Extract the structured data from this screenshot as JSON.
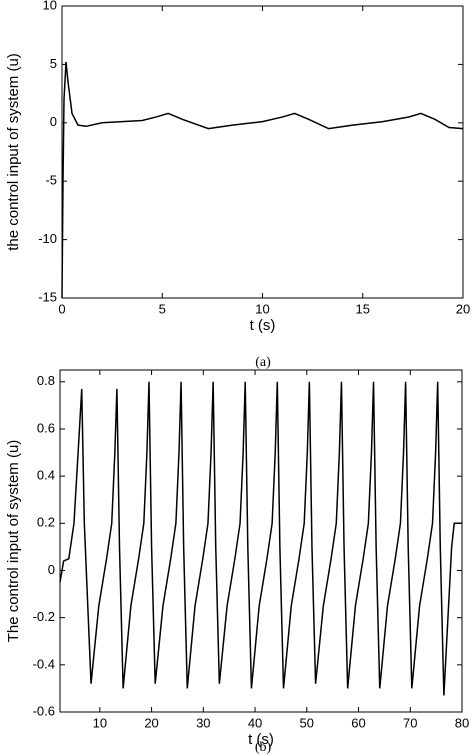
{
  "chart_data": [
    {
      "type": "line",
      "caption": "(a)",
      "xlabel": "t (s)",
      "ylabel": "the control input of system (u)",
      "xlim": [
        0,
        20
      ],
      "ylim": [
        -15,
        10
      ],
      "xticks": [
        0,
        5,
        10,
        15,
        20
      ],
      "yticks": [
        -15,
        -10,
        -5,
        0,
        5,
        10
      ],
      "series": [
        {
          "color": "#000000",
          "x": [
            0,
            0.05,
            0.1,
            0.2,
            0.3,
            0.5,
            0.8,
            1.2,
            2,
            3,
            4,
            4.7,
            5.3,
            6,
            7.3,
            8.5,
            10,
            11,
            11.6,
            12.3,
            13.3,
            14.5,
            16,
            17.3,
            17.9,
            18.6,
            19.3,
            20
          ],
          "values": [
            -15,
            -5,
            2,
            5.2,
            3.5,
            0.8,
            -0.2,
            -0.3,
            0,
            0.1,
            0.2,
            0.5,
            0.8,
            0.3,
            -0.5,
            -0.2,
            0.1,
            0.5,
            0.8,
            0.3,
            -0.5,
            -0.2,
            0.1,
            0.5,
            0.8,
            0.3,
            -0.4,
            -0.5
          ]
        }
      ]
    },
    {
      "type": "line",
      "caption": "(b)",
      "xlabel": "t (s)",
      "ylabel": "The control input of system (u)",
      "xlim": [
        2.3,
        80
      ],
      "ylim": [
        -0.6,
        0.85
      ],
      "xticks": [
        10,
        20,
        30,
        40,
        50,
        60,
        70,
        80
      ],
      "yticks": [
        -0.6,
        -0.4,
        -0.2,
        0,
        0.2,
        0.4,
        0.6,
        0.8
      ],
      "series": [
        {
          "color": "#000000",
          "x": [
            2.3,
            3,
            4,
            5,
            5.8,
            6.5,
            7,
            8.3,
            9.8,
            11.3,
            12.3,
            12.9,
            13.3,
            13.8,
            14.5,
            16,
            17.5,
            18.5,
            19.1,
            19.5,
            20,
            20.7,
            22.2,
            23.7,
            24.7,
            25.3,
            25.7,
            26.2,
            26.9,
            28.4,
            29.9,
            30.9,
            31.5,
            31.9,
            32.4,
            33.1,
            34.6,
            36.1,
            37.1,
            37.7,
            38.1,
            38.6,
            39.3,
            40.8,
            42.3,
            43.3,
            43.9,
            44.3,
            44.8,
            45.5,
            47,
            48.5,
            49.5,
            50.1,
            50.5,
            51,
            51.7,
            53.2,
            54.7,
            55.7,
            56.3,
            56.7,
            57.2,
            57.9,
            59.4,
            60.9,
            61.9,
            62.5,
            62.9,
            63.4,
            64.1,
            65.6,
            67.1,
            68.1,
            68.7,
            69.1,
            69.6,
            70.3,
            71.8,
            73.3,
            74.3,
            74.9,
            75.3,
            75.8,
            76.5,
            78,
            78.5,
            80
          ],
          "values": [
            -0.05,
            0.04,
            0.05,
            0.2,
            0.5,
            0.77,
            0.2,
            -0.48,
            -0.15,
            0.05,
            0.2,
            0.5,
            0.77,
            0.1,
            -0.5,
            -0.15,
            0.05,
            0.2,
            0.5,
            0.8,
            0.1,
            -0.48,
            -0.15,
            0.05,
            0.2,
            0.5,
            0.8,
            0.1,
            -0.5,
            -0.15,
            0.05,
            0.2,
            0.5,
            0.8,
            0.1,
            -0.48,
            -0.15,
            0.05,
            0.2,
            0.5,
            0.8,
            0.1,
            -0.5,
            -0.15,
            0.05,
            0.2,
            0.5,
            0.8,
            0.1,
            -0.5,
            -0.15,
            0.05,
            0.2,
            0.5,
            0.8,
            0.1,
            -0.48,
            -0.15,
            0.05,
            0.2,
            0.5,
            0.8,
            0.1,
            -0.5,
            -0.15,
            0.05,
            0.2,
            0.5,
            0.8,
            0.1,
            -0.5,
            -0.15,
            0.05,
            0.2,
            0.5,
            0.8,
            0.1,
            -0.5,
            -0.15,
            0.05,
            0.2,
            0.5,
            0.8,
            0.1,
            -0.53,
            0.1,
            0.2,
            0.2
          ]
        }
      ]
    }
  ]
}
